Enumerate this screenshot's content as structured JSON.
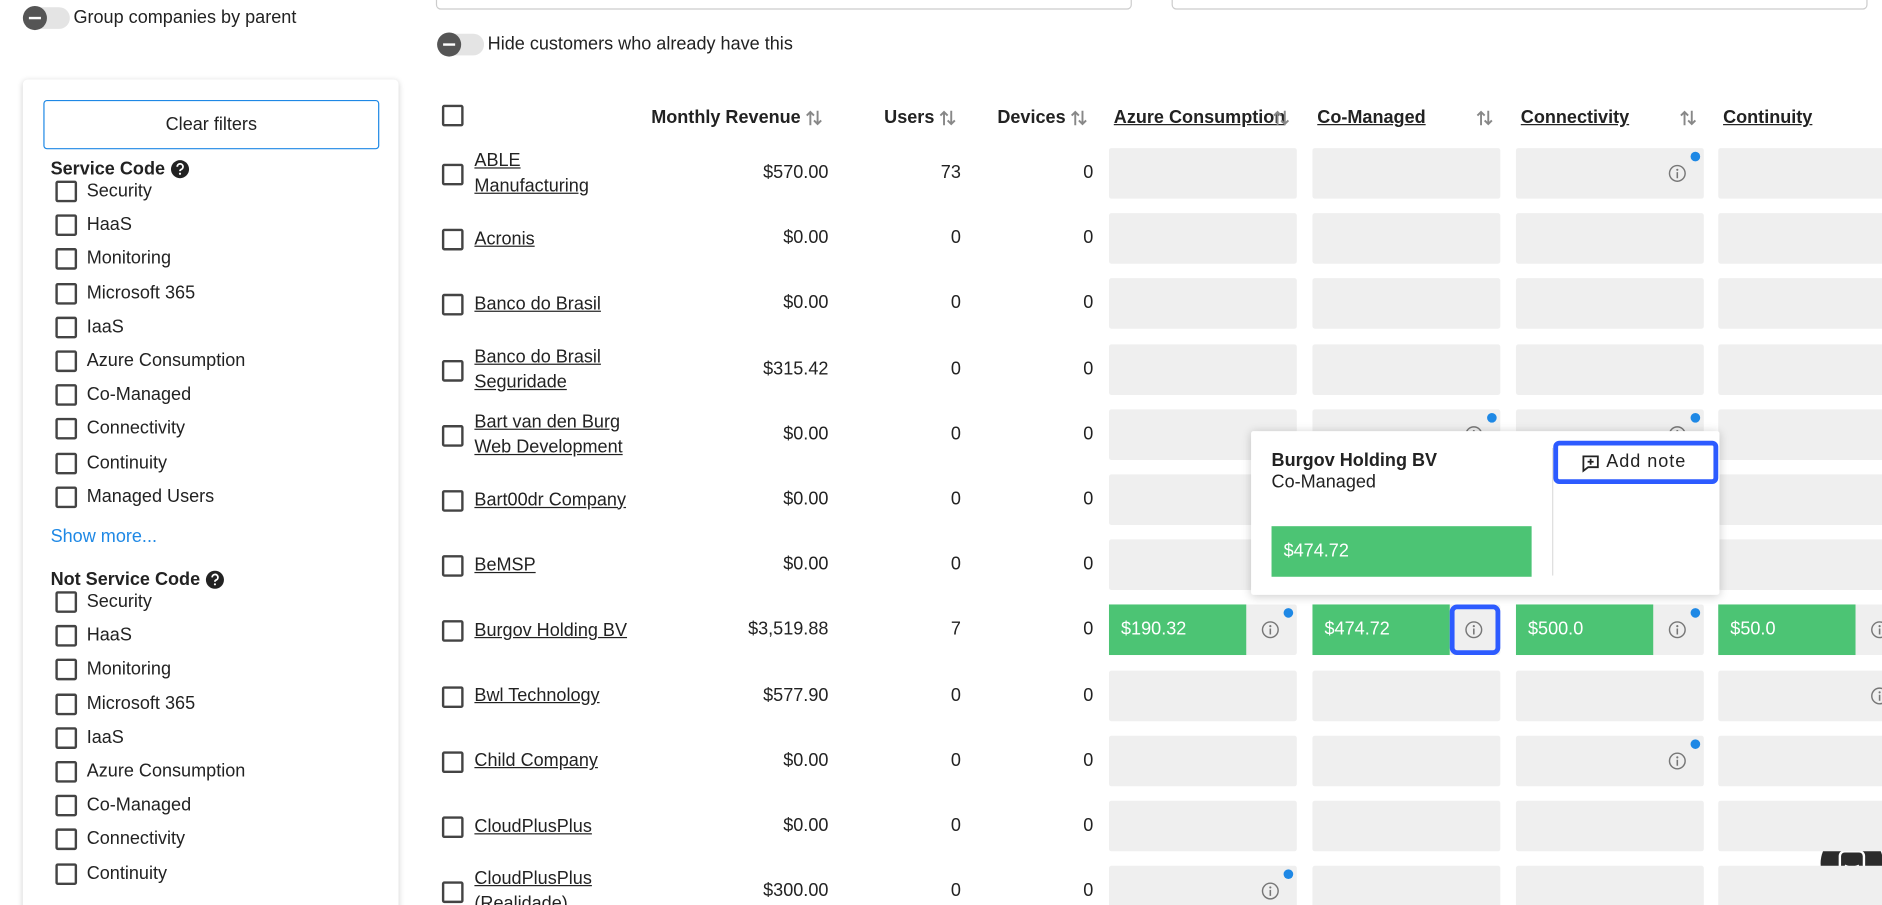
{
  "toggles": {
    "group_by_parent": "Group companies by parent",
    "hide_customers": "Hide customers who already have this"
  },
  "sidebar": {
    "clear_filters": "Clear filters",
    "service_code": {
      "title": "Service Code",
      "options": [
        "Security",
        "HaaS",
        "Monitoring",
        "Microsoft 365",
        "IaaS",
        "Azure Consumption",
        "Co-Managed",
        "Connectivity",
        "Continuity",
        "Managed Users"
      ]
    },
    "show_more": "Show more...",
    "not_service_code": {
      "title": "Not Service Code",
      "options": [
        "Security",
        "HaaS",
        "Monitoring",
        "Microsoft 365",
        "IaaS",
        "Azure Consumption",
        "Co-Managed",
        "Connectivity",
        "Continuity"
      ]
    }
  },
  "table": {
    "columns": [
      "Monthly Revenue",
      "Users",
      "Devices",
      "Azure Consumption",
      "Co-Managed",
      "Connectivity",
      "Continuity"
    ],
    "rows": [
      {
        "name": "ABLE Manufacturing",
        "revenue": "$570.00",
        "users": 73,
        "devices": 0,
        "services": [
          null,
          null,
          {
            "info": true,
            "dot": true
          },
          null
        ]
      },
      {
        "name": "Acronis",
        "revenue": "$0.00",
        "users": 0,
        "devices": 0,
        "services": [
          null,
          null,
          null,
          null
        ]
      },
      {
        "name": "Banco do Brasil",
        "revenue": "$0.00",
        "users": 0,
        "devices": 0,
        "services": [
          null,
          null,
          null,
          null
        ]
      },
      {
        "name": "Banco do Brasil Seguridade",
        "revenue": "$315.42",
        "users": 0,
        "devices": 0,
        "services": [
          null,
          null,
          null,
          null
        ]
      },
      {
        "name": "Bart van den Burg Web Development",
        "revenue": "$0.00",
        "users": 0,
        "devices": 0,
        "services": [
          null,
          {
            "info": true,
            "dot": true
          },
          {
            "info": true,
            "dot": true
          },
          null
        ]
      },
      {
        "name": "Bart00dr Company",
        "revenue": "$0.00",
        "users": 0,
        "devices": 0,
        "services": [
          null,
          null,
          null,
          null
        ]
      },
      {
        "name": "BeMSP",
        "revenue": "$0.00",
        "users": 0,
        "devices": 0,
        "services": [
          null,
          null,
          null,
          null
        ]
      },
      {
        "name": "Burgov Holding BV",
        "revenue": "$3,519.88",
        "users": 7,
        "devices": 0,
        "services": [
          {
            "value": "$190.32",
            "info": true,
            "dot": true
          },
          {
            "value": "$474.72",
            "info": true,
            "active": true
          },
          {
            "value": "$500.0",
            "info": true,
            "dot": true
          },
          {
            "value": "$50.0",
            "info": true
          }
        ]
      },
      {
        "name": "Bwl Technology",
        "revenue": "$577.90",
        "users": 0,
        "devices": 0,
        "services": [
          null,
          null,
          null,
          {
            "info": true
          }
        ]
      },
      {
        "name": "Child Company",
        "revenue": "$0.00",
        "users": 0,
        "devices": 0,
        "services": [
          null,
          null,
          {
            "info": true,
            "dot": true
          },
          null
        ]
      },
      {
        "name": "CloudPlusPlus",
        "revenue": "$0.00",
        "users": 0,
        "devices": 0,
        "services": [
          null,
          null,
          null,
          null
        ]
      },
      {
        "name": "CloudPlusPlus (Realidade)",
        "revenue": "$300.00",
        "users": 0,
        "devices": 0,
        "services": [
          {
            "info": true,
            "dot": true
          },
          null,
          null,
          null
        ]
      }
    ]
  },
  "popup": {
    "company": "Burgov Holding BV",
    "service": "Co-Managed",
    "value": "$474.72",
    "add_note": "Add note"
  }
}
